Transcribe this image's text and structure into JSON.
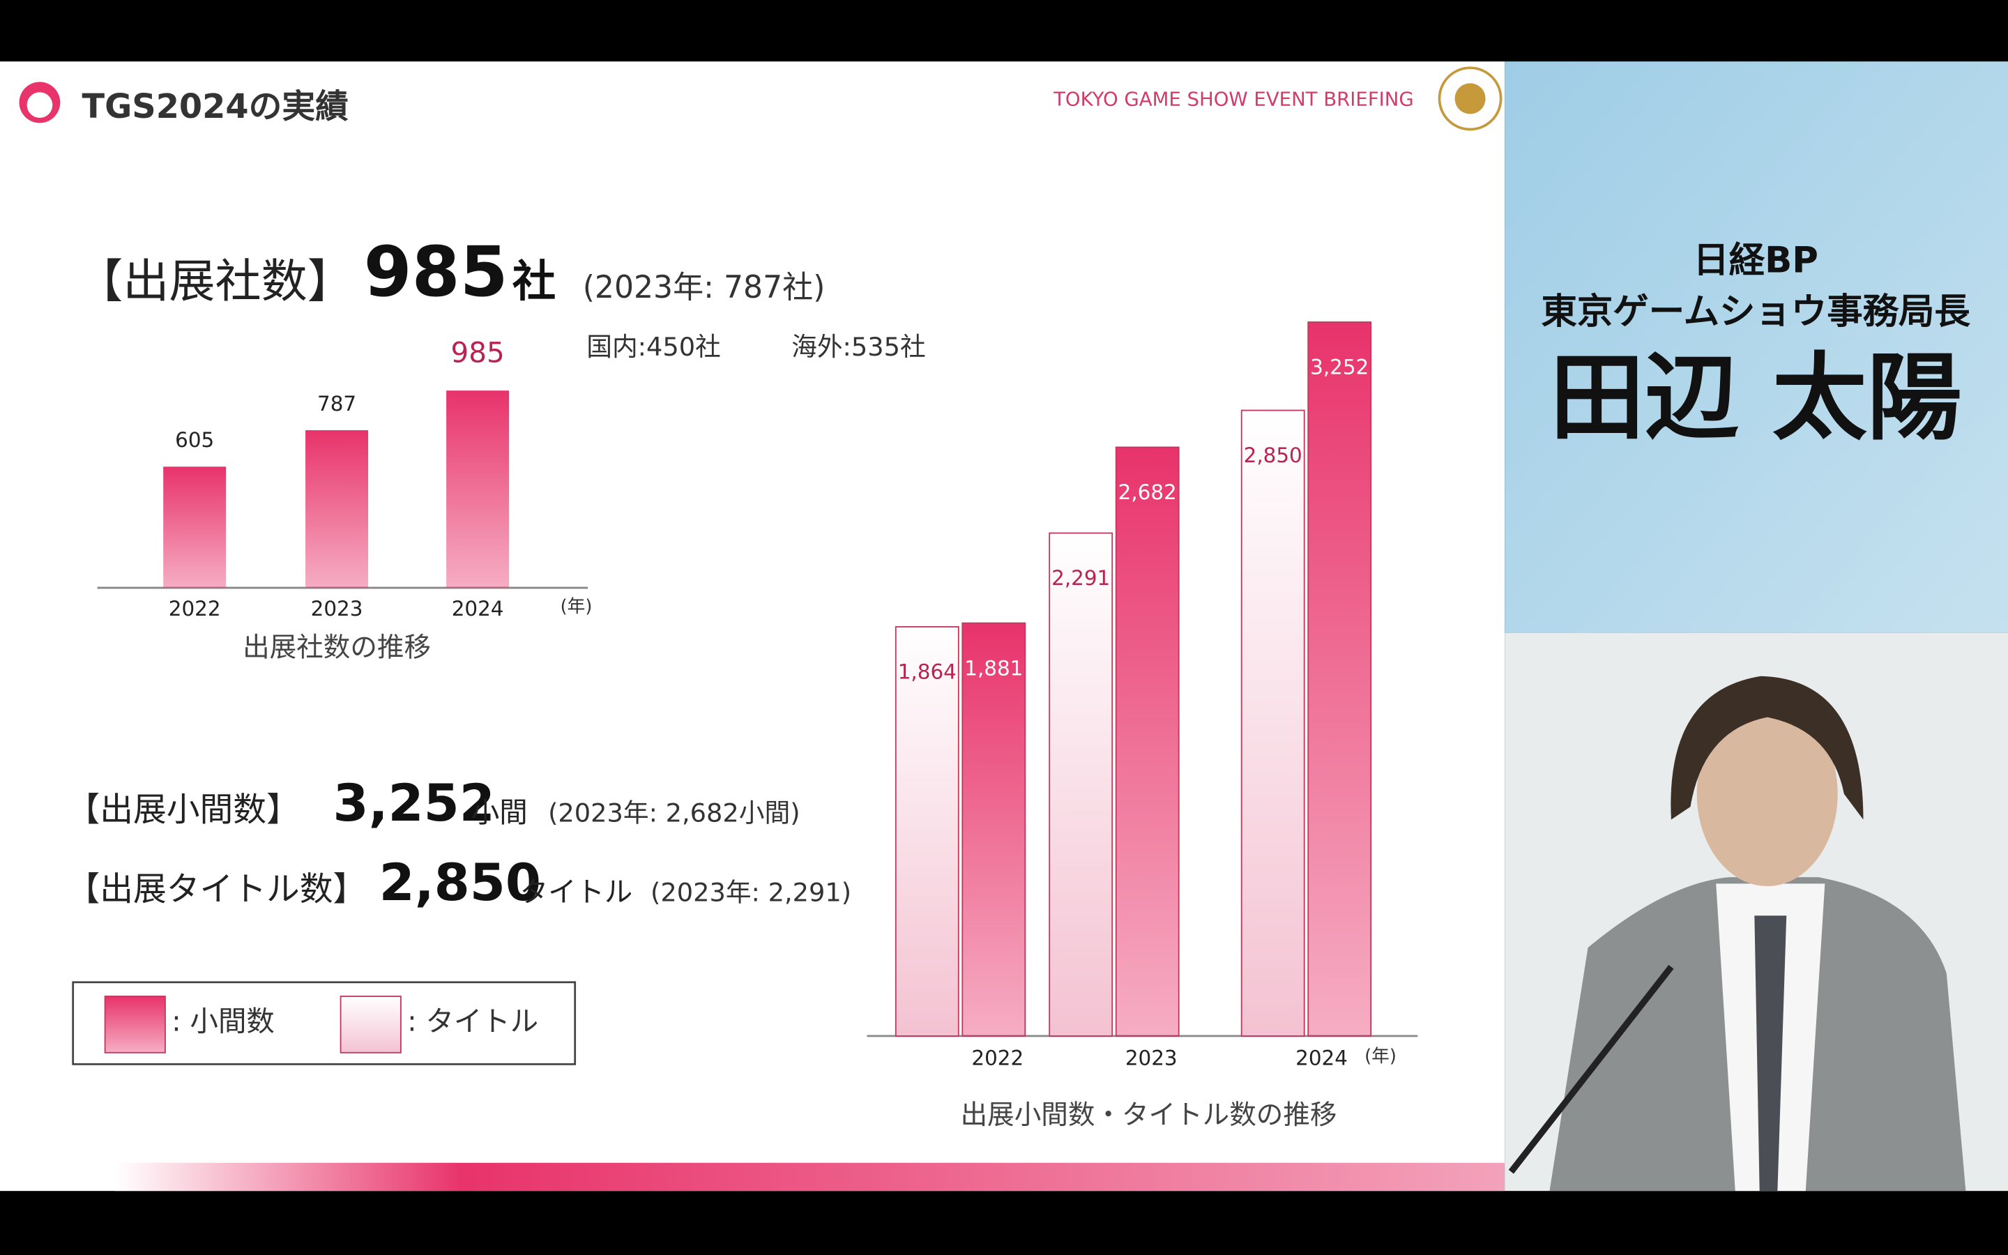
{
  "slide": {
    "title": "TGS2024の実績",
    "brand": "TOKYO GAME SHOW EVENT BRIEFING",
    "exhibitors": {
      "label": "【出展社数】",
      "value": "985",
      "unit": "社",
      "previous": "(2023年: 787社)",
      "domestic": "国内:450社",
      "overseas": "海外:535社"
    },
    "booths": {
      "label": "【出展小間数】",
      "value": "3,252",
      "unit": "小間",
      "previous": "(2023年: 2,682小間)"
    },
    "titles": {
      "label": "【出展タイトル数】",
      "value": "2,850",
      "unit": "タイトル",
      "previous": "(2023年: 2,291)"
    }
  },
  "speaker": {
    "organization": "日経BP",
    "role": "東京ゲームショウ事務局長",
    "name": "田辺 太陽"
  },
  "chart_data": [
    {
      "type": "bar",
      "title": "出展社数の推移",
      "x_unit": "(年)",
      "categories": [
        "2022",
        "2023",
        "2024"
      ],
      "values": [
        605,
        787,
        985
      ],
      "color": "#e8336b",
      "ylim": [
        0,
        1100
      ]
    },
    {
      "type": "grouped_bar",
      "title": "出展小間数・タイトル数の推移",
      "x_unit": "(年)",
      "categories": [
        "2022",
        "2023",
        "2024"
      ],
      "ylim": [
        0,
        3500
      ],
      "series": [
        {
          "name": ": 小間数",
          "color": "#e8336b",
          "values": [
            1881,
            2682,
            3252
          ],
          "value_labels": [
            "1,881",
            "2,682",
            "3,252"
          ]
        },
        {
          "name": ": タイトル",
          "color": "#f4c2d2",
          "values": [
            1864,
            2291,
            2850
          ],
          "value_labels": [
            "1,864",
            "2,291",
            "2,850"
          ]
        }
      ]
    }
  ]
}
